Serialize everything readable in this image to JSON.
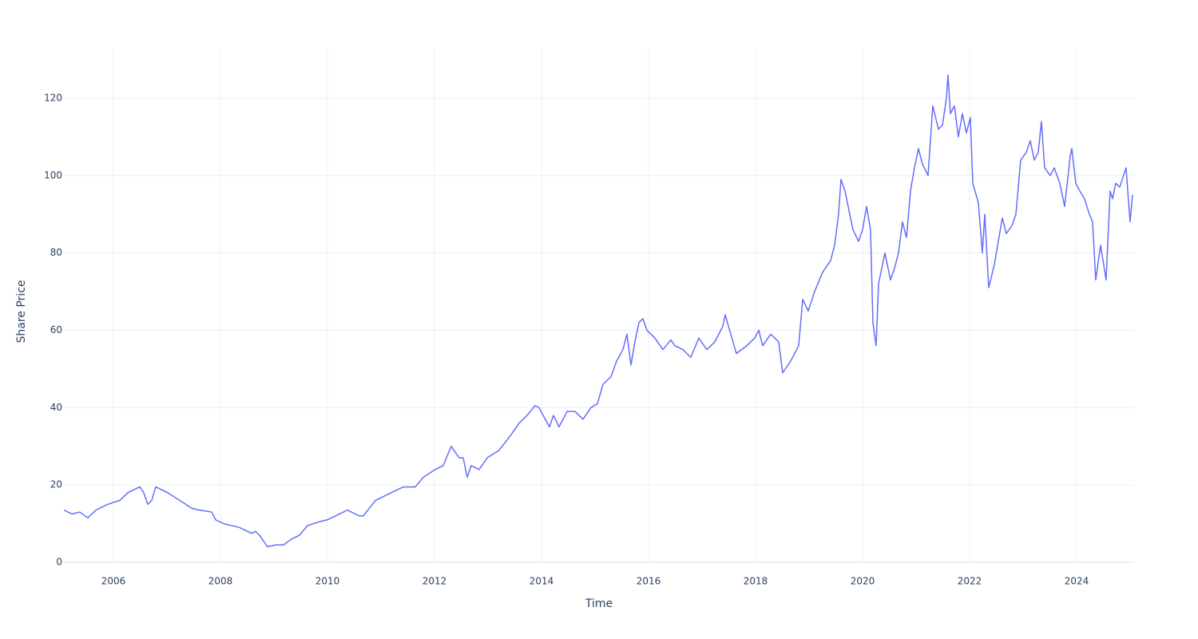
{
  "chart_data": {
    "type": "line",
    "x_label": "Time",
    "y_label": "Share Price",
    "xlim": [
      2005.075,
      2025.075
    ],
    "ylim": [
      0,
      133
    ],
    "xticks": [
      2006,
      2008,
      2010,
      2012,
      2014,
      2016,
      2018,
      2020,
      2022,
      2024
    ],
    "yticks": [
      0,
      20,
      40,
      60,
      80,
      100,
      120
    ],
    "grid": true,
    "x": [
      2005.075,
      2005.224,
      2005.373,
      2005.522,
      2005.672,
      2005.896,
      2006.0,
      2006.119,
      2006.269,
      2006.493,
      2006.567,
      2006.642,
      2006.716,
      2006.791,
      2007.015,
      2007.239,
      2007.463,
      2007.612,
      2007.836,
      2007.91,
      2008.06,
      2008.358,
      2008.433,
      2008.582,
      2008.657,
      2008.731,
      2008.881,
      2009.03,
      2009.179,
      2009.328,
      2009.478,
      2009.627,
      2009.851,
      2010.0,
      2010.149,
      2010.373,
      2010.597,
      2010.672,
      2010.896,
      2011.194,
      2011.418,
      2011.642,
      2011.791,
      2012.015,
      2012.164,
      2012.313,
      2012.463,
      2012.537,
      2012.612,
      2012.687,
      2012.836,
      2012.985,
      2013.209,
      2013.433,
      2013.582,
      2013.731,
      2013.881,
      2013.955,
      2014.03,
      2014.149,
      2014.224,
      2014.328,
      2014.478,
      2014.627,
      2014.776,
      2014.925,
      2015.045,
      2015.149,
      2015.299,
      2015.403,
      2015.522,
      2015.597,
      2015.672,
      2015.746,
      2015.821,
      2015.896,
      2015.97,
      2016.119,
      2016.269,
      2016.418,
      2016.493,
      2016.642,
      2016.791,
      2016.94,
      2017.09,
      2017.239,
      2017.388,
      2017.433,
      2017.537,
      2017.642,
      2017.836,
      2017.985,
      2018.06,
      2018.134,
      2018.284,
      2018.433,
      2018.507,
      2018.657,
      2018.806,
      2018.881,
      2018.985,
      2019.104,
      2019.254,
      2019.403,
      2019.478,
      2019.552,
      2019.597,
      2019.672,
      2019.731,
      2019.821,
      2019.925,
      2020.0,
      2020.075,
      2020.149,
      2020.194,
      2020.254,
      2020.299,
      2020.418,
      2020.522,
      2020.597,
      2020.672,
      2020.746,
      2020.821,
      2020.896,
      2020.97,
      2021.045,
      2021.119,
      2021.224,
      2021.313,
      2021.418,
      2021.493,
      2021.567,
      2021.597,
      2021.642,
      2021.716,
      2021.791,
      2021.866,
      2021.94,
      2022.015,
      2022.06,
      2022.164,
      2022.239,
      2022.284,
      2022.358,
      2022.463,
      2022.537,
      2022.612,
      2022.687,
      2022.791,
      2022.866,
      2022.955,
      2023.06,
      2023.134,
      2023.209,
      2023.284,
      2023.343,
      2023.403,
      2023.507,
      2023.582,
      2023.687,
      2023.776,
      2023.881,
      2023.91,
      2023.985,
      2024.06,
      2024.149,
      2024.239,
      2024.299,
      2024.358,
      2024.448,
      2024.552,
      2024.627,
      2024.672,
      2024.731,
      2024.806,
      2024.925,
      2025.0,
      2025.045
    ],
    "series": [
      {
        "color": "#636efa",
        "values": [
          13.5,
          12.5,
          13,
          11.5,
          13.5,
          15,
          15.5,
          16,
          18,
          19.5,
          18,
          15,
          16,
          19.5,
          18,
          16,
          14,
          13.5,
          13,
          11,
          10,
          9,
          8.5,
          7.5,
          8,
          7,
          4,
          4.5,
          4.5,
          6,
          7,
          9.5,
          10.5,
          11,
          12,
          13.5,
          12,
          12,
          16,
          18,
          19.5,
          19.5,
          22,
          24,
          25,
          30,
          27,
          27,
          22,
          25,
          24,
          27,
          29,
          33,
          36,
          38,
          40.5,
          40,
          38,
          35,
          38,
          35,
          39,
          39,
          37,
          40,
          41,
          46,
          48,
          52,
          55,
          59,
          51,
          57,
          62,
          63,
          60,
          58,
          55,
          57.5,
          56,
          55,
          53,
          58,
          55,
          57,
          61,
          64,
          59,
          54,
          56,
          58,
          60,
          56,
          59,
          57,
          49,
          52,
          56,
          68,
          65,
          70,
          75,
          78,
          82,
          90,
          99,
          96,
          92,
          86,
          83,
          86,
          92,
          86,
          62,
          56,
          72,
          80,
          73,
          76,
          80,
          88,
          84,
          96,
          102,
          107,
          103,
          100,
          118,
          112,
          113,
          120,
          126,
          116,
          118,
          110,
          116,
          111,
          115,
          98,
          93,
          80,
          90,
          71,
          77,
          83,
          89,
          85,
          87,
          90,
          104,
          106,
          109,
          104,
          106,
          114,
          102,
          100,
          102,
          98,
          92,
          105,
          107,
          98,
          96,
          94,
          90,
          88,
          73,
          82,
          73,
          96,
          94,
          98,
          97,
          102,
          88,
          95
        ]
      }
    ]
  }
}
